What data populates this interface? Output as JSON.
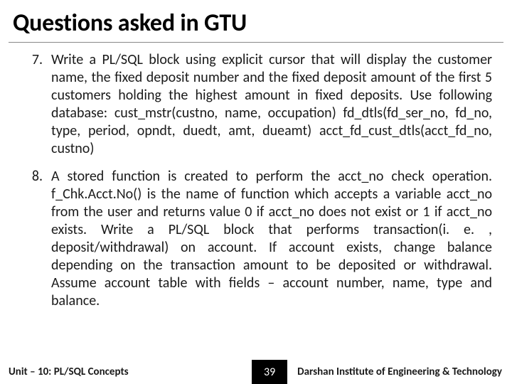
{
  "title": "Questions asked in GTU",
  "questions": [
    {
      "number": "7.",
      "text": "Write a PL/SQL block using explicit cursor that will display the customer name, the fixed deposit number and the fixed deposit amount of the first 5 customers holding the highest amount in fixed deposits. Use following database: cust_mstr(custno, name, occupation) fd_dtls(fd_ser_no, fd_no, type, period, opndt, duedt, amt, dueamt) acct_fd_cust_dtls(acct_fd_no, custno)"
    },
    {
      "number": "8.",
      "text": "A stored function is created to perform the acct_no check operation. f_Chk.Acct.No() is the name of function which accepts a variable acct_no from the user and returns value 0 if acct_no does not exist or 1 if acct_no exists. Write a PL/SQL block that performs transaction(i. e. , deposit/withdrawal) on account. If account exists, change balance depending on the transaction amount to be deposited or withdrawal. Assume account table with fields – account number, name, type and balance."
    }
  ],
  "footer": {
    "left": "Unit – 10: PL/SQL Concepts",
    "page": "39",
    "right": "Darshan Institute of Engineering & Technology"
  },
  "colors": {
    "background": "#ffffff",
    "text": "#1a1a1a",
    "title": "#000000",
    "underline": "#888888",
    "footer_page_bg": "#000000",
    "footer_page_text": "#ffffff"
  },
  "typography": {
    "title_fontsize": 34,
    "body_fontsize": 20,
    "footer_fontsize": 15,
    "font_family": "Calibri"
  }
}
